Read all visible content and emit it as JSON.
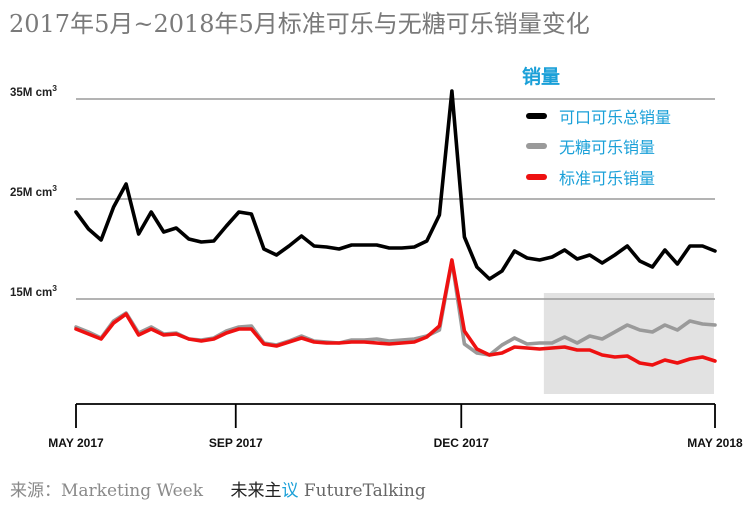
{
  "title": "2017年5月~2018年5月标准可乐与无糖可乐销量变化",
  "footer": {
    "source": "来源：Marketing Week",
    "brand_cn_a": "未来主",
    "brand_cn_b": "议",
    "brand_en": "FutureTalking"
  },
  "legend": {
    "title": "销量",
    "items": [
      {
        "label": "可口可乐总销量",
        "color": "#000000"
      },
      {
        "label": "无糖可乐销量",
        "color": "#9a9a9a"
      },
      {
        "label": "标准可乐销量",
        "color": "#ee1111"
      }
    ]
  },
  "chart_data": {
    "type": "line",
    "title": "2017年5月~2018年5月标准可乐与无糖可乐销量变化",
    "xlabel": "",
    "ylabel": "",
    "x_ticks": [
      "MAY 2017",
      "SEP 2017",
      "DEC 2017",
      "MAY 2018"
    ],
    "x_tick_positions": [
      0,
      17,
      41,
      68
    ],
    "y_ticks": [
      {
        "value": 15,
        "base": "15M cm",
        "sup": "3"
      },
      {
        "value": 25,
        "base": "25M cm",
        "sup": "3"
      },
      {
        "value": 35,
        "base": "35M cm",
        "sup": "3"
      }
    ],
    "ylim": [
      4,
      35
    ],
    "x_range": [
      0,
      68
    ],
    "grid": "horizontal",
    "legend_position": "top-right",
    "highlight_range": [
      50,
      68
    ],
    "highlight_color": "#e2e2e2",
    "series": [
      {
        "name": "可口可乐总销量",
        "color": "#000000",
        "values": [
          23.7,
          22.0,
          20.9,
          24.2,
          26.5,
          21.5,
          23.7,
          21.7,
          22.1,
          21.0,
          20.7,
          20.8,
          22.3,
          23.7,
          23.5,
          20.0,
          19.4,
          20.3,
          21.3,
          20.3,
          20.2,
          20.0,
          20.4,
          20.4,
          20.4,
          20.1,
          20.1,
          20.2,
          20.8,
          23.4,
          35.8,
          21.2,
          18.2,
          17.0,
          17.8,
          19.8,
          19.1,
          18.9,
          19.2,
          19.9,
          19.0,
          19.4,
          18.6,
          19.4,
          20.3,
          18.8,
          18.2,
          19.9,
          18.5,
          20.3,
          20.3,
          19.8
        ]
      },
      {
        "name": "无糖可乐销量",
        "color": "#9a9a9a",
        "values": [
          12.2,
          11.7,
          11.1,
          12.8,
          13.6,
          11.6,
          12.2,
          11.5,
          11.6,
          11.0,
          10.9,
          11.1,
          11.8,
          12.2,
          12.3,
          10.6,
          10.4,
          10.8,
          11.3,
          10.8,
          10.7,
          10.6,
          10.9,
          10.9,
          11.0,
          10.8,
          10.9,
          11.0,
          11.3,
          11.9,
          18.8,
          10.5,
          9.6,
          9.4,
          10.4,
          11.1,
          10.5,
          10.6,
          10.6,
          11.2,
          10.6,
          11.3,
          11.0,
          11.7,
          12.4,
          11.9,
          11.7,
          12.4,
          11.9,
          12.8,
          12.5,
          12.4
        ]
      },
      {
        "name": "标准可乐销量",
        "color": "#ee1111",
        "values": [
          12.0,
          11.5,
          11.0,
          12.6,
          13.5,
          11.4,
          12.0,
          11.4,
          11.5,
          11.0,
          10.8,
          11.0,
          11.6,
          12.0,
          12.0,
          10.5,
          10.3,
          10.7,
          11.1,
          10.7,
          10.6,
          10.6,
          10.7,
          10.7,
          10.6,
          10.5,
          10.6,
          10.7,
          11.2,
          12.3,
          18.9,
          11.8,
          10.0,
          9.4,
          9.6,
          10.2,
          10.1,
          10.0,
          10.1,
          10.2,
          9.9,
          9.9,
          9.4,
          9.2,
          9.3,
          8.6,
          8.4,
          8.9,
          8.6,
          9.0,
          9.2,
          8.8
        ]
      }
    ]
  }
}
